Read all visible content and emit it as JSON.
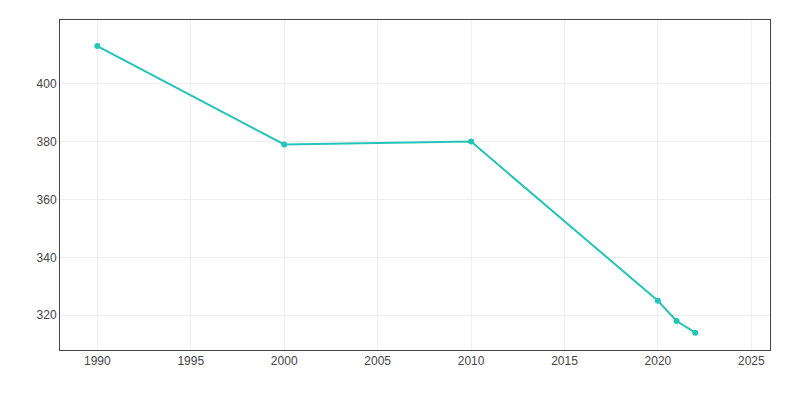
{
  "chart_data": {
    "type": "line",
    "x": [
      1990,
      2000,
      2010,
      2020,
      2021,
      2022
    ],
    "values": [
      413,
      379,
      380,
      325,
      318,
      314
    ],
    "color": "#25c4b8",
    "marker": "circle",
    "xlim": [
      1988,
      2026
    ],
    "ylim": [
      308,
      422
    ],
    "xticks": [
      1990,
      1995,
      2000,
      2005,
      2010,
      2015,
      2020,
      2025
    ],
    "yticks": [
      320,
      340,
      360,
      380,
      400
    ],
    "grid": true
  }
}
